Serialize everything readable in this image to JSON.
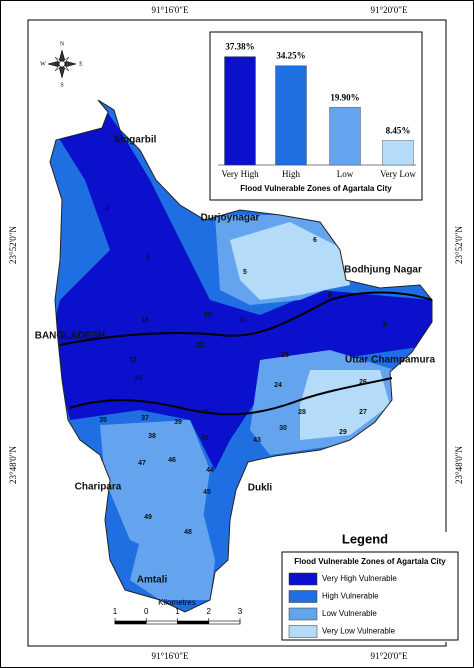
{
  "map": {
    "coordinates": {
      "top": [
        "91°16'0\"E",
        "91°20'0\"E"
      ],
      "bottom": [
        "91°16'0\"E",
        "91°20'0\"E"
      ],
      "left": [
        "23°52'0\"N",
        "23°48'0\"N"
      ],
      "right": [
        "23°52'0\"N",
        "23°48'0\"N"
      ]
    },
    "compass": {
      "n": "N",
      "s": "S",
      "e": "E",
      "w": "W"
    },
    "place_labels": [
      "Singarbil",
      "Durjoynagar",
      "Bodhjung Nagar",
      "BANGLADESH",
      "Uttar Champamura",
      "Charipara",
      "Dukli",
      "Amtali"
    ],
    "ward_labels": [
      "2",
      "3",
      "5",
      "6",
      "8",
      "9",
      "10",
      "11",
      "16",
      "22",
      "25",
      "24",
      "26",
      "27",
      "28",
      "29",
      "30",
      "32",
      "33",
      "35",
      "37",
      "38",
      "39",
      "40",
      "41",
      "43",
      "44",
      "45",
      "46",
      "47",
      "48",
      "49"
    ],
    "legend": {
      "title": "Legend",
      "subtitle": "Flood Vulnerable Zones of Agartala City",
      "items": [
        {
          "label": "Very High Vulnerable",
          "color": "#0a10cc"
        },
        {
          "label": "High Vulnerable",
          "color": "#1f6fe3"
        },
        {
          "label": "Low Vulnerable",
          "color": "#64a4ee"
        },
        {
          "label": "Very Low Vulnerable",
          "color": "#b4dcf8"
        }
      ]
    },
    "scale_bar": {
      "title": "Kilometres",
      "ticks": [
        {
          "value": -1,
          "label": "1"
        },
        0,
        1,
        2,
        3
      ]
    }
  },
  "chart_data": {
    "type": "bar",
    "title": "Flood Vulnerable Zones of Agartala City",
    "categories": [
      "Very High",
      "High",
      "Low",
      "Very Low"
    ],
    "values": [
      37.38,
      34.25,
      19.9,
      8.45
    ],
    "value_labels": [
      "37.38%",
      "34.25%",
      "19.90%",
      "8.45%"
    ],
    "colors": [
      "#0a10cc",
      "#1f6fe3",
      "#64a4ee",
      "#b4dcf8"
    ]
  }
}
